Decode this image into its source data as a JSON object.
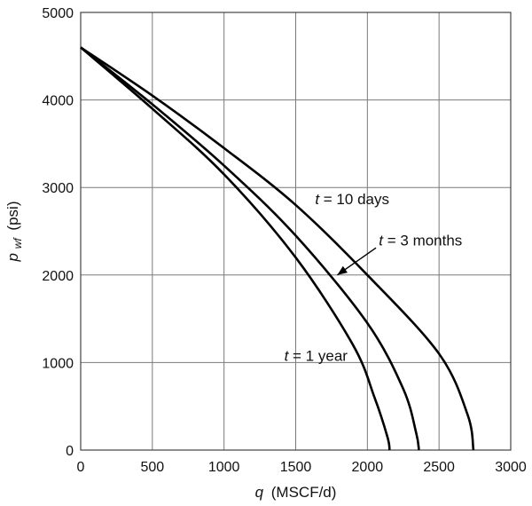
{
  "chart_data": {
    "type": "line",
    "xlabel": {
      "var": "q",
      "unit": "(MSCF/d)"
    },
    "ylabel": {
      "var": "p",
      "sub": "wf",
      "unit": "(psi)"
    },
    "xlim": [
      0,
      3000
    ],
    "ylim": [
      0,
      5000
    ],
    "xticks": [
      "0",
      "500",
      "1000",
      "1500",
      "2000",
      "2500",
      "3000"
    ],
    "yticks": [
      "0",
      "1000",
      "2000",
      "3000",
      "4000",
      "5000"
    ],
    "grid": true,
    "series": [
      {
        "name": "t = 1 year",
        "var": "t",
        "eq": " = 1 year",
        "x": [
          0,
          500,
          1000,
          1500,
          1900,
          2050,
          2140,
          2155
        ],
        "y": [
          4600,
          3900,
          3150,
          2200,
          1200,
          600,
          150,
          0
        ]
      },
      {
        "name": "t = 3 months",
        "var": "t",
        "eq": " = 3 months",
        "x": [
          0,
          500,
          1000,
          1500,
          2000,
          2250,
          2340,
          2360
        ],
        "y": [
          4600,
          3950,
          3250,
          2450,
          1450,
          700,
          200,
          0
        ]
      },
      {
        "name": "t = 10 days",
        "var": "t",
        "eq": " = 10 days",
        "x": [
          0,
          500,
          1000,
          1500,
          2000,
          2500,
          2700,
          2740
        ],
        "y": [
          4600,
          4050,
          3450,
          2800,
          2000,
          1100,
          400,
          0
        ]
      }
    ]
  }
}
